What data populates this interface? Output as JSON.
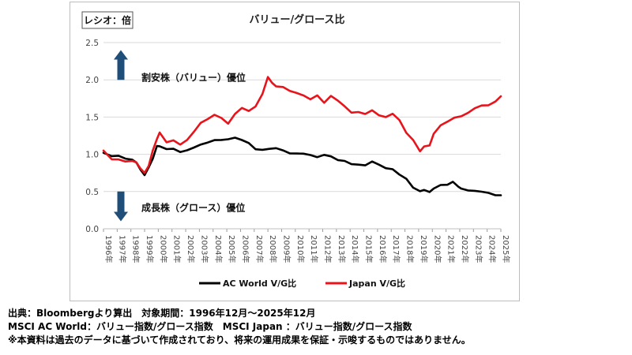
{
  "chart_data": {
    "type": "line",
    "title": "バリュー/グロース比",
    "unit_label": "レシオ：倍",
    "ylim": [
      0.0,
      2.5
    ],
    "yticks": [
      "0.0",
      "0.5",
      "1.0",
      "1.5",
      "2.0",
      "2.5"
    ],
    "xlim": [
      1996.9,
      2025.9
    ],
    "xticks": [
      "1996年",
      "1997年",
      "1998年",
      "1999年",
      "2000年",
      "2001年",
      "2002年",
      "2003年",
      "2004年",
      "2005年",
      "2006年",
      "2007年",
      "2008年",
      "2009年",
      "2010年",
      "2011年",
      "2012年",
      "2013年",
      "2014年",
      "2015年",
      "2016年",
      "2017年",
      "2018年",
      "2019年",
      "2020年",
      "2021年",
      "2022年",
      "2023年",
      "2024年",
      "2025年"
    ],
    "grid": true,
    "legend_position": "bottom",
    "annotations": [
      {
        "text": "割安株（バリュー）優位",
        "arrow": "up",
        "y": 2.03
      },
      {
        "text": "成長株（グロース）優位",
        "arrow": "down",
        "y": 0.28
      }
    ],
    "series": [
      {
        "name": "AC World V/G比",
        "color": "#000000",
        "x": [
          1996.9,
          1997.5,
          1998.0,
          1998.5,
          1999.0,
          1999.3,
          1999.6,
          1999.9,
          2000.2,
          2000.5,
          2000.8,
          2001.0,
          2001.5,
          2002.0,
          2002.5,
          2003.0,
          2003.5,
          2004.0,
          2004.5,
          2005.0,
          2005.5,
          2006.0,
          2006.5,
          2007.0,
          2007.5,
          2008.0,
          2008.5,
          2009.0,
          2009.5,
          2010.0,
          2010.5,
          2011.0,
          2011.5,
          2012.0,
          2012.5,
          2013.0,
          2013.5,
          2014.0,
          2014.5,
          2015.0,
          2015.5,
          2016.0,
          2016.5,
          2017.0,
          2017.5,
          2018.0,
          2018.5,
          2019.0,
          2019.5,
          2020.0,
          2020.3,
          2020.7,
          2021.0,
          2021.5,
          2022.0,
          2022.4,
          2022.8,
          2023.0,
          2023.5,
          2024.0,
          2024.5,
          2025.0,
          2025.5,
          2025.9
        ],
        "y": [
          1.02,
          0.97,
          0.99,
          0.93,
          0.94,
          0.88,
          0.8,
          0.72,
          0.82,
          0.95,
          1.1,
          1.12,
          1.06,
          1.08,
          1.03,
          1.05,
          1.1,
          1.12,
          1.17,
          1.18,
          1.2,
          1.2,
          1.22,
          1.2,
          1.14,
          1.08,
          1.05,
          1.08,
          1.08,
          1.05,
          1.02,
          1.0,
          1.02,
          0.98,
          0.97,
          0.99,
          0.97,
          0.93,
          0.9,
          0.88,
          0.85,
          0.86,
          0.9,
          0.86,
          0.82,
          0.79,
          0.74,
          0.66,
          0.56,
          0.5,
          0.52,
          0.5,
          0.53,
          0.6,
          0.58,
          0.64,
          0.56,
          0.54,
          0.52,
          0.5,
          0.51,
          0.47,
          0.46,
          0.45
        ]
      },
      {
        "name": "Japan V/G比",
        "color": "#e8141c",
        "x": [
          1996.9,
          1997.5,
          1998.0,
          1998.5,
          1999.0,
          1999.3,
          1999.6,
          1999.9,
          2000.2,
          2000.5,
          2000.8,
          2001.0,
          2001.5,
          2002.0,
          2002.5,
          2003.0,
          2003.5,
          2004.0,
          2004.5,
          2005.0,
          2005.5,
          2006.0,
          2006.5,
          2007.0,
          2007.5,
          2008.0,
          2008.5,
          2008.9,
          2009.2,
          2009.5,
          2010.0,
          2010.5,
          2011.0,
          2011.5,
          2012.0,
          2012.5,
          2013.0,
          2013.5,
          2014.0,
          2014.5,
          2015.0,
          2015.5,
          2016.0,
          2016.5,
          2017.0,
          2017.5,
          2018.0,
          2018.5,
          2019.0,
          2019.5,
          2020.0,
          2020.3,
          2020.7,
          2021.0,
          2021.5,
          2022.0,
          2022.5,
          2023.0,
          2023.5,
          2024.0,
          2024.5,
          2025.0,
          2025.5,
          2025.9
        ],
        "y": [
          1.05,
          0.94,
          0.93,
          0.9,
          0.92,
          0.88,
          0.82,
          0.74,
          0.85,
          1.05,
          1.2,
          1.3,
          1.15,
          1.2,
          1.12,
          1.2,
          1.3,
          1.42,
          1.48,
          1.52,
          1.5,
          1.4,
          1.55,
          1.62,
          1.58,
          1.65,
          1.8,
          2.05,
          1.95,
          1.92,
          1.9,
          1.85,
          1.83,
          1.78,
          1.75,
          1.78,
          1.7,
          1.78,
          1.72,
          1.65,
          1.55,
          1.58,
          1.53,
          1.6,
          1.52,
          1.5,
          1.55,
          1.45,
          1.3,
          1.18,
          1.05,
          1.1,
          1.12,
          1.28,
          1.38,
          1.45,
          1.48,
          1.52,
          1.55,
          1.62,
          1.66,
          1.65,
          1.72,
          1.78
        ]
      }
    ]
  },
  "notes": {
    "line1": "出典：Bloombergより算出　対象期間：1996年12月～2025年12月",
    "line2": "MSCI AC World：バリュー指数/グロース指数　MSCI Japan ：バリュー指数/グロース指数",
    "line3": "※本資料は過去のデータに基づいて作成されており、将来の運用成果を保証・示唆するものではありません。"
  }
}
